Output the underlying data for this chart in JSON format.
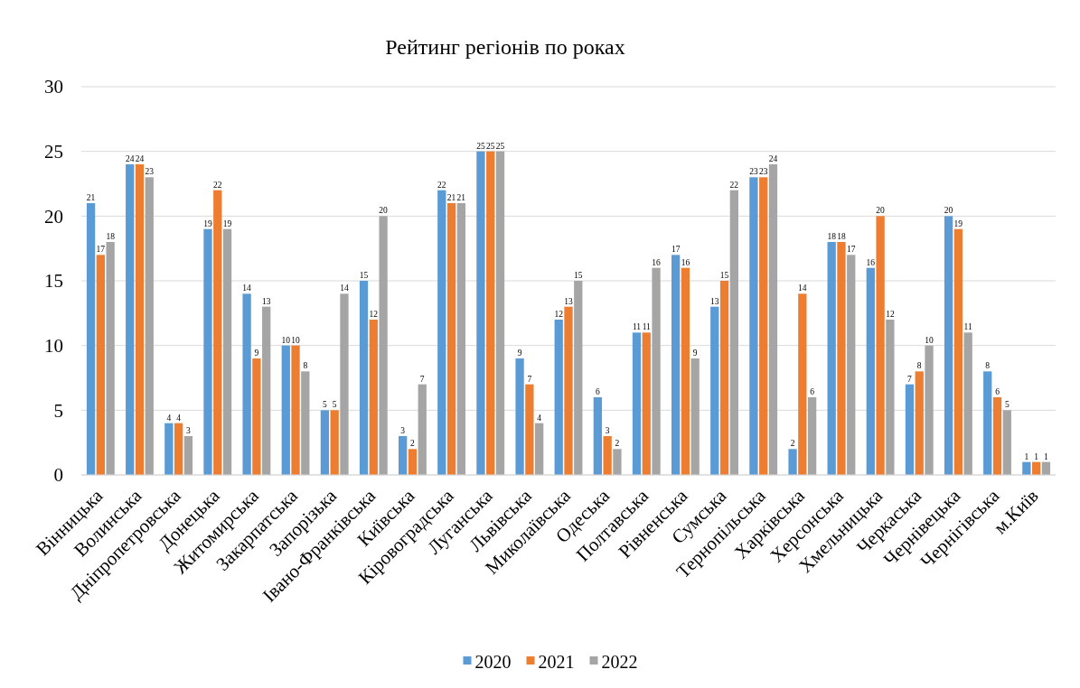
{
  "chart_data": {
    "type": "bar",
    "title": "Рейтинг регіонів по роках",
    "categories": [
      "Вінницька",
      "Волинська",
      "Дніпропетровська",
      "Донецька",
      "Житомирська",
      "Закарпатська",
      "Запорізька",
      "Івано-Франківська",
      "Київська",
      "Кіровоградська",
      "Луганська",
      "Львівська",
      "Миколаївська",
      "Одеська",
      "Полтавська",
      "Рівненська",
      "Сумська",
      "Тернопільська",
      "Харківська",
      "Херсонська",
      "Хмельницька",
      "Черкаська",
      "Чернівецька",
      "Чернігівська",
      "м.Київ"
    ],
    "series": [
      {
        "name": "2020",
        "color": "#5b9bd5",
        "values": [
          21,
          24,
          4,
          19,
          14,
          10,
          5,
          15,
          3,
          22,
          25,
          9,
          12,
          6,
          11,
          17,
          13,
          23,
          2,
          18,
          16,
          7,
          20,
          8,
          1
        ]
      },
      {
        "name": "2021",
        "color": "#ed7d31",
        "values": [
          17,
          24,
          4,
          22,
          9,
          10,
          5,
          12,
          2,
          21,
          25,
          7,
          13,
          3,
          11,
          16,
          15,
          23,
          14,
          18,
          20,
          8,
          19,
          6,
          1
        ]
      },
      {
        "name": "2022",
        "color": "#a5a5a5",
        "values": [
          18,
          23,
          3,
          19,
          13,
          8,
          14,
          20,
          7,
          21,
          25,
          4,
          15,
          2,
          16,
          9,
          22,
          24,
          6,
          17,
          12,
          10,
          11,
          5,
          1
        ]
      }
    ],
    "ylim": [
      0,
      30
    ],
    "yticks": [
      0,
      5,
      10,
      15,
      20,
      25,
      30
    ],
    "grid": "y",
    "legend": "bottom",
    "data_labels": true
  }
}
